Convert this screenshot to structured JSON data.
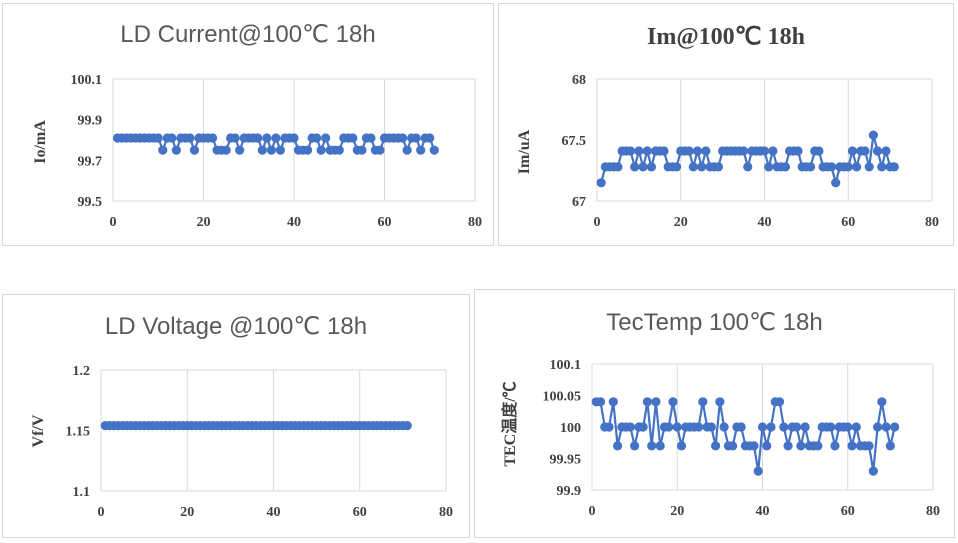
{
  "chart_data": [
    {
      "type": "line",
      "title": "LD Current@100℃ 18h",
      "ylabel": "Io/mA",
      "xlim": [
        0,
        80
      ],
      "ylim": [
        99.5,
        100.1
      ],
      "xticks": [
        "0",
        "20",
        "40",
        "60",
        "80"
      ],
      "yticks": [
        "99.5",
        "99.7",
        "99.9",
        "100.1"
      ],
      "grid": "vertical",
      "series": [
        {
          "color": "#4472C4",
          "x": [
            1,
            2,
            3,
            4,
            5,
            6,
            7,
            8,
            9,
            10,
            11,
            12,
            13,
            14,
            15,
            16,
            17,
            18,
            19,
            20,
            21,
            22,
            23,
            24,
            25,
            26,
            27,
            28,
            29,
            30,
            31,
            32,
            33,
            34,
            35,
            36,
            37,
            38,
            39,
            40,
            41,
            42,
            43,
            44,
            45,
            46,
            47,
            48,
            49,
            50,
            51,
            52,
            53,
            54,
            55,
            56,
            57,
            58,
            59,
            60,
            61,
            62,
            63,
            64,
            65,
            66,
            67,
            68,
            69,
            70,
            71
          ],
          "values": [
            99.81,
            99.81,
            99.81,
            99.81,
            99.81,
            99.81,
            99.81,
            99.81,
            99.81,
            99.81,
            99.75,
            99.81,
            99.81,
            99.75,
            99.81,
            99.81,
            99.81,
            99.75,
            99.81,
            99.81,
            99.81,
            99.81,
            99.75,
            99.75,
            99.75,
            99.81,
            99.81,
            99.75,
            99.81,
            99.81,
            99.81,
            99.81,
            99.75,
            99.81,
            99.75,
            99.81,
            99.75,
            99.81,
            99.81,
            99.81,
            99.75,
            99.75,
            99.75,
            99.81,
            99.81,
            99.75,
            99.81,
            99.75,
            99.75,
            99.75,
            99.81,
            99.81,
            99.81,
            99.75,
            99.75,
            99.81,
            99.81,
            99.75,
            99.75,
            99.81,
            99.81,
            99.81,
            99.81,
            99.81,
            99.75,
            99.81,
            99.81,
            99.75,
            99.81,
            99.81,
            99.75
          ]
        }
      ]
    },
    {
      "type": "line",
      "title": "Im@100℃ 18h",
      "ylabel": "Im/uA",
      "xlim": [
        0,
        80
      ],
      "ylim": [
        67,
        68
      ],
      "xticks": [
        "0",
        "20",
        "40",
        "60",
        "80"
      ],
      "yticks": [
        "67",
        "67.5",
        "68"
      ],
      "grid": "vertical",
      "series": [
        {
          "color": "#4472C4",
          "x": [
            1,
            2,
            3,
            4,
            5,
            6,
            7,
            8,
            9,
            10,
            11,
            12,
            13,
            14,
            15,
            16,
            17,
            18,
            19,
            20,
            21,
            22,
            23,
            24,
            25,
            26,
            27,
            28,
            29,
            30,
            31,
            32,
            33,
            34,
            35,
            36,
            37,
            38,
            39,
            40,
            41,
            42,
            43,
            44,
            45,
            46,
            47,
            48,
            49,
            50,
            51,
            52,
            53,
            54,
            55,
            56,
            57,
            58,
            59,
            60,
            61,
            62,
            63,
            64,
            65,
            66,
            67,
            68,
            69,
            70,
            71
          ],
          "values": [
            67.15,
            67.28,
            67.28,
            67.28,
            67.28,
            67.41,
            67.41,
            67.41,
            67.28,
            67.41,
            67.28,
            67.41,
            67.28,
            67.41,
            67.41,
            67.41,
            67.28,
            67.28,
            67.28,
            67.41,
            67.41,
            67.41,
            67.28,
            67.41,
            67.28,
            67.41,
            67.28,
            67.28,
            67.28,
            67.41,
            67.41,
            67.41,
            67.41,
            67.41,
            67.41,
            67.28,
            67.41,
            67.41,
            67.41,
            67.41,
            67.28,
            67.41,
            67.28,
            67.28,
            67.28,
            67.41,
            67.41,
            67.41,
            67.28,
            67.28,
            67.28,
            67.41,
            67.41,
            67.28,
            67.28,
            67.28,
            67.15,
            67.28,
            67.28,
            67.28,
            67.41,
            67.28,
            67.41,
            67.41,
            67.28,
            67.54,
            67.41,
            67.28,
            67.41,
            67.28,
            67.28
          ]
        }
      ]
    },
    {
      "type": "line",
      "title": "LD Voltage @100℃ 18h",
      "ylabel": "Vf/V",
      "xlim": [
        0,
        80
      ],
      "ylim": [
        1.1,
        1.2
      ],
      "xticks": [
        "0",
        "20",
        "40",
        "60",
        "80"
      ],
      "yticks": [
        "1.1",
        "1.15",
        "1.2"
      ],
      "grid": "vertical",
      "series": [
        {
          "color": "#4472C4",
          "x": [
            1,
            2,
            3,
            4,
            5,
            6,
            7,
            8,
            9,
            10,
            11,
            12,
            13,
            14,
            15,
            16,
            17,
            18,
            19,
            20,
            21,
            22,
            23,
            24,
            25,
            26,
            27,
            28,
            29,
            30,
            31,
            32,
            33,
            34,
            35,
            36,
            37,
            38,
            39,
            40,
            41,
            42,
            43,
            44,
            45,
            46,
            47,
            48,
            49,
            50,
            51,
            52,
            53,
            54,
            55,
            56,
            57,
            58,
            59,
            60,
            61,
            62,
            63,
            64,
            65,
            66,
            67,
            68,
            69,
            70,
            71
          ],
          "values": [
            1.154,
            1.154,
            1.154,
            1.154,
            1.154,
            1.154,
            1.154,
            1.154,
            1.154,
            1.154,
            1.154,
            1.154,
            1.154,
            1.154,
            1.154,
            1.154,
            1.154,
            1.154,
            1.154,
            1.154,
            1.154,
            1.154,
            1.154,
            1.154,
            1.154,
            1.154,
            1.154,
            1.154,
            1.154,
            1.154,
            1.154,
            1.154,
            1.154,
            1.154,
            1.154,
            1.154,
            1.154,
            1.154,
            1.154,
            1.154,
            1.154,
            1.154,
            1.154,
            1.154,
            1.154,
            1.154,
            1.154,
            1.154,
            1.154,
            1.154,
            1.154,
            1.154,
            1.154,
            1.154,
            1.154,
            1.154,
            1.154,
            1.154,
            1.154,
            1.154,
            1.154,
            1.154,
            1.154,
            1.154,
            1.154,
            1.154,
            1.154,
            1.154,
            1.154,
            1.154,
            1.154
          ]
        }
      ]
    },
    {
      "type": "line",
      "title": "TecTemp 100℃ 18h",
      "ylabel": "TEC温度/℃",
      "xlim": [
        0,
        80
      ],
      "ylim": [
        99.9,
        100.1
      ],
      "xticks": [
        "0",
        "20",
        "40",
        "60",
        "80"
      ],
      "yticks": [
        "99.9",
        "99.95",
        "100",
        "100.05",
        "100.1"
      ],
      "grid": "vertical",
      "series": [
        {
          "color": "#4472C4",
          "x": [
            1,
            2,
            3,
            4,
            5,
            6,
            7,
            8,
            9,
            10,
            11,
            12,
            13,
            14,
            15,
            16,
            17,
            18,
            19,
            20,
            21,
            22,
            23,
            24,
            25,
            26,
            27,
            28,
            29,
            30,
            31,
            32,
            33,
            34,
            35,
            36,
            37,
            38,
            39,
            40,
            41,
            42,
            43,
            44,
            45,
            46,
            47,
            48,
            49,
            50,
            51,
            52,
            53,
            54,
            55,
            56,
            57,
            58,
            59,
            60,
            61,
            62,
            63,
            64,
            65,
            66,
            67,
            68,
            69,
            70,
            71
          ],
          "values": [
            100.04,
            100.04,
            100,
            100,
            100.04,
            99.97,
            100,
            100,
            100,
            99.97,
            100,
            100,
            100.04,
            99.97,
            100.04,
            99.97,
            100,
            100,
            100.04,
            100,
            99.97,
            100,
            100,
            100,
            100,
            100.04,
            100,
            100,
            99.97,
            100.04,
            100,
            99.97,
            99.97,
            100,
            100,
            99.97,
            99.97,
            99.97,
            99.93,
            100,
            99.97,
            100,
            100.04,
            100.04,
            100,
            99.97,
            100,
            100,
            99.97,
            100,
            99.97,
            99.97,
            99.97,
            100,
            100,
            100,
            99.97,
            100,
            100,
            100,
            99.97,
            100,
            99.97,
            99.97,
            99.97,
            99.93,
            100,
            100.04,
            100,
            99.97,
            100
          ]
        }
      ]
    }
  ]
}
